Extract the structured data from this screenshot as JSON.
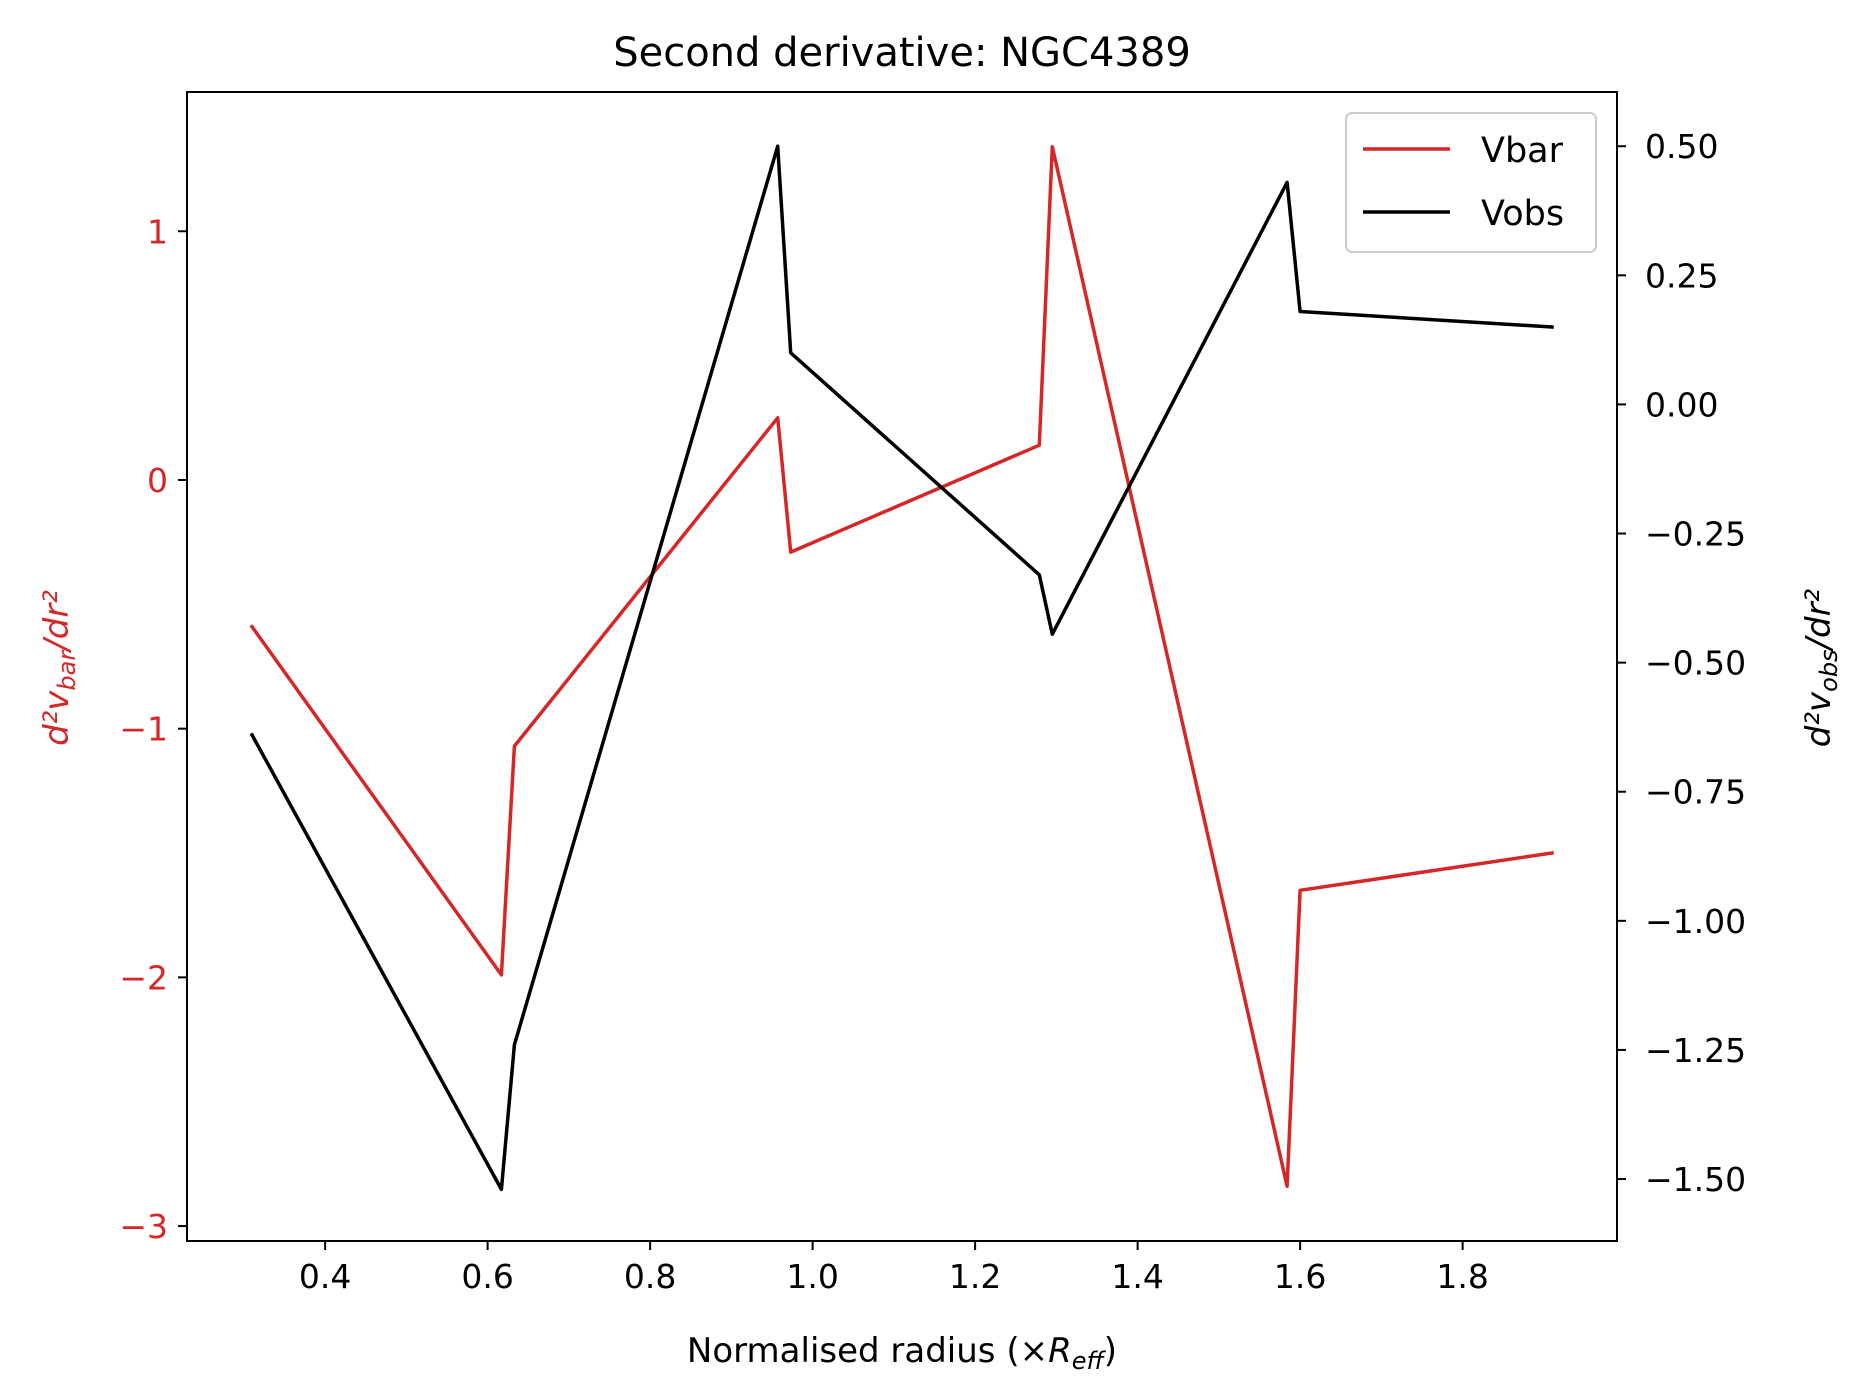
{
  "chart_data": {
    "type": "line",
    "title": "Second derivative: NGC4389",
    "xlabel": {
      "prefix": "Normalised radius (×",
      "symbol": "R",
      "subscript": "eff",
      "suffix": ")"
    },
    "ylabel_left": {
      "symbol": "d²v",
      "subscript": "bar",
      "suffix": "/dr²",
      "color": "#d62728"
    },
    "ylabel_right": {
      "symbol": "d²v",
      "subscript": "obs",
      "suffix": "/dr²",
      "color": "#000000"
    },
    "xlim": [
      0.23,
      1.99
    ],
    "ylim_left": [
      -3.06,
      1.56
    ],
    "ylim_right": [
      -1.62,
      0.605
    ],
    "xticks": [
      0.4,
      0.6,
      0.8,
      1.0,
      1.2,
      1.4,
      1.6,
      1.8
    ],
    "xtick_labels": [
      "0.4",
      "0.6",
      "0.8",
      "1.0",
      "1.2",
      "1.4",
      "1.6",
      "1.8"
    ],
    "yticks_left": [
      1,
      0,
      -1,
      -2,
      -3
    ],
    "ytick_labels_left": [
      "1",
      "0",
      "−1",
      "−2",
      "−3"
    ],
    "yticks_right": [
      0.5,
      0.25,
      0.0,
      -0.25,
      -0.5,
      -0.75,
      -1.0,
      -1.25,
      -1.5
    ],
    "ytick_labels_right": [
      "0.50",
      "0.25",
      "0.00",
      "−0.25",
      "−0.50",
      "−0.75",
      "−1.00",
      "−1.25",
      "−1.50"
    ],
    "legend_position": "upper right",
    "grid": false,
    "series": [
      {
        "name": "Vbar",
        "axis": "left",
        "color": "#d62728",
        "x": [
          0.31,
          0.617,
          0.633,
          0.957,
          0.973,
          1.279,
          1.295,
          1.584,
          1.6,
          1.91
        ],
        "y": [
          -0.59,
          -1.99,
          -1.07,
          0.25,
          -0.29,
          0.14,
          1.34,
          -2.84,
          -1.65,
          -1.5
        ]
      },
      {
        "name": "Vobs",
        "axis": "right",
        "color": "#000000",
        "x": [
          0.31,
          0.617,
          0.633,
          0.957,
          0.973,
          1.279,
          1.295,
          1.584,
          1.6,
          1.91
        ],
        "y": [
          -0.64,
          -1.52,
          -1.24,
          0.5,
          0.1,
          -0.33,
          -0.445,
          0.43,
          0.18,
          0.15
        ]
      }
    ]
  }
}
